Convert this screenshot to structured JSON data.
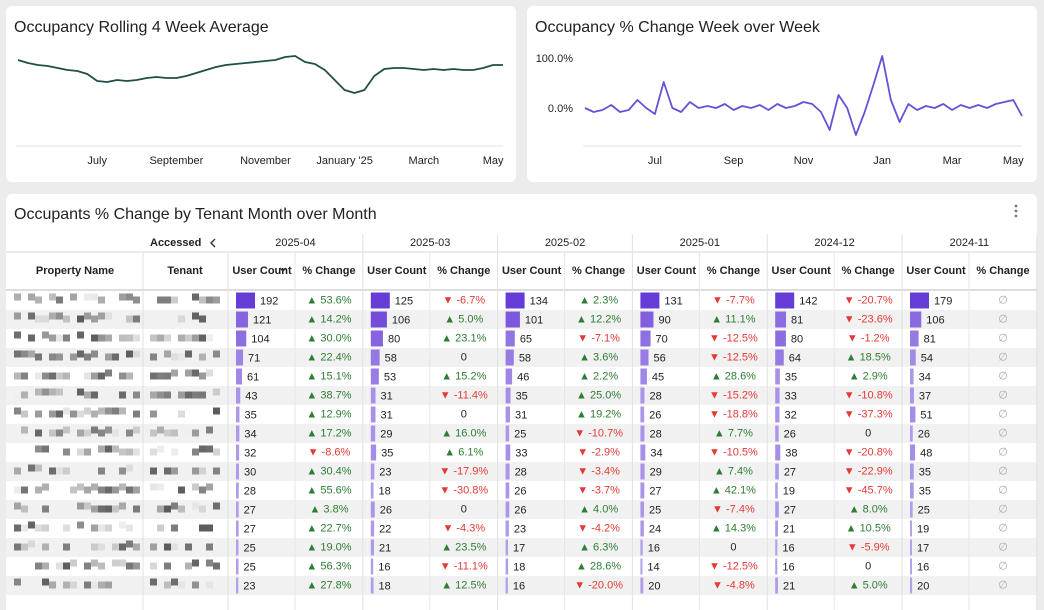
{
  "chart_data": [
    {
      "type": "line",
      "title": "Occupancy Rolling 4 Week Average",
      "color": "#1f4f45",
      "categories": [
        null,
        null,
        null,
        null,
        null,
        null,
        null,
        null,
        "July",
        null,
        null,
        null,
        null,
        null,
        null,
        null,
        "September",
        null,
        null,
        null,
        null,
        null,
        null,
        null,
        null,
        "November",
        null,
        null,
        null,
        null,
        null,
        null,
        null,
        "January '25",
        null,
        null,
        null,
        null,
        null,
        null,
        null,
        "March",
        null,
        null,
        null,
        null,
        null,
        null,
        "May",
        null
      ],
      "values": [
        90,
        87,
        85,
        84,
        82,
        80,
        79,
        76,
        69,
        68,
        70,
        69,
        70,
        72,
        73,
        72,
        72,
        74,
        77,
        80,
        83,
        85,
        86,
        87,
        88,
        89,
        90,
        93,
        94,
        88,
        86,
        80,
        70,
        60,
        57,
        60,
        74,
        81,
        82,
        82,
        81,
        80,
        81,
        80,
        81,
        80,
        80,
        82,
        85,
        85
      ]
    },
    {
      "type": "line",
      "title": "Occupancy % Change Week over Week",
      "color": "#6a4fd8",
      "categories": [
        null,
        null,
        null,
        null,
        null,
        null,
        null,
        null,
        "Jul",
        null,
        null,
        null,
        null,
        null,
        null,
        null,
        null,
        "Sep",
        null,
        null,
        null,
        null,
        null,
        null,
        null,
        "Nov",
        null,
        null,
        null,
        null,
        null,
        null,
        null,
        null,
        "Jan",
        null,
        null,
        null,
        null,
        null,
        null,
        null,
        "Mar",
        null,
        null,
        null,
        null,
        null,
        null,
        "May",
        null
      ],
      "values": [
        2,
        -6,
        -2,
        8,
        -6,
        -2,
        18,
        2,
        -10,
        54,
        2,
        -6,
        14,
        2,
        6,
        2,
        10,
        -2,
        6,
        2,
        8,
        -2,
        10,
        2,
        6,
        14,
        10,
        -6,
        -42,
        28,
        2,
        -52,
        -6,
        48,
        106,
        18,
        -26,
        10,
        -2,
        6,
        2,
        10,
        -2,
        8,
        2,
        8,
        2,
        10,
        14,
        18,
        -14
      ],
      "ylim": [
        -74,
        118
      ],
      "yticks": [
        {
          "value": 0,
          "label": "0.0%"
        },
        {
          "value": 100,
          "label": "100.0%"
        }
      ]
    }
  ],
  "table": {
    "title": "Occupants % Change by Tenant Month over Month",
    "group_label": "Accessed",
    "months": [
      "2025-04",
      "2025-03",
      "2025-02",
      "2025-01",
      "2024-12",
      "2024-11"
    ],
    "columns": [
      "Property Name",
      "Tenant",
      "User Count",
      "% Change"
    ],
    "rows": [
      [
        192,
        "▲ 53.6%",
        125,
        "▼ -6.7%",
        134,
        "▲ 2.3%",
        131,
        "▼ -7.7%",
        142,
        "▼ -20.7%",
        179,
        "∅"
      ],
      [
        121,
        "▲ 14.2%",
        106,
        "▲ 5.0%",
        101,
        "▲ 12.2%",
        90,
        "▲ 11.1%",
        81,
        "▼ -23.6%",
        106,
        "∅"
      ],
      [
        104,
        "▲ 30.0%",
        80,
        "▲ 23.1%",
        65,
        "▼ -7.1%",
        70,
        "▼ -12.5%",
        80,
        "▼ -1.2%",
        81,
        "∅"
      ],
      [
        71,
        "▲ 22.4%",
        58,
        "0",
        58,
        "▲ 3.6%",
        56,
        "▼ -12.5%",
        64,
        "▲ 18.5%",
        54,
        "∅"
      ],
      [
        61,
        "▲ 15.1%",
        53,
        "▲ 15.2%",
        46,
        "▲ 2.2%",
        45,
        "▲ 28.6%",
        35,
        "▲ 2.9%",
        34,
        "∅"
      ],
      [
        43,
        "▲ 38.7%",
        31,
        "▼ -11.4%",
        35,
        "▲ 25.0%",
        28,
        "▼ -15.2%",
        33,
        "▼ -10.8%",
        37,
        "∅"
      ],
      [
        35,
        "▲ 12.9%",
        31,
        "0",
        31,
        "▲ 19.2%",
        26,
        "▼ -18.8%",
        32,
        "▼ -37.3%",
        51,
        "∅"
      ],
      [
        34,
        "▲ 17.2%",
        29,
        "▲ 16.0%",
        25,
        "▼ -10.7%",
        28,
        "▲ 7.7%",
        26,
        "0",
        26,
        "∅"
      ],
      [
        32,
        "▼ -8.6%",
        35,
        "▲ 6.1%",
        33,
        "▼ -2.9%",
        34,
        "▼ -10.5%",
        38,
        "▼ -20.8%",
        48,
        "∅"
      ],
      [
        30,
        "▲ 30.4%",
        23,
        "▼ -17.9%",
        28,
        "▼ -3.4%",
        29,
        "▲ 7.4%",
        27,
        "▼ -22.9%",
        35,
        "∅"
      ],
      [
        28,
        "▲ 55.6%",
        18,
        "▼ -30.8%",
        26,
        "▼ -3.7%",
        27,
        "▲ 42.1%",
        19,
        "▼ -45.7%",
        35,
        "∅"
      ],
      [
        27,
        "▲ 3.8%",
        26,
        "0",
        26,
        "▲ 4.0%",
        25,
        "▼ -7.4%",
        27,
        "▲ 8.0%",
        25,
        "∅"
      ],
      [
        27,
        "▲ 22.7%",
        22,
        "▼ -4.3%",
        23,
        "▼ -4.2%",
        24,
        "▲ 14.3%",
        21,
        "▲ 10.5%",
        19,
        "∅"
      ],
      [
        25,
        "▲ 19.0%",
        21,
        "▲ 23.5%",
        17,
        "▲ 6.3%",
        16,
        "0",
        16,
        "▼ -5.9%",
        17,
        "∅"
      ],
      [
        25,
        "▲ 56.3%",
        16,
        "▼ -11.1%",
        18,
        "▲ 28.6%",
        14,
        "▼ -12.5%",
        16,
        "0",
        16,
        "∅"
      ],
      [
        23,
        "▲ 27.8%",
        18,
        "▲ 12.5%",
        16,
        "▼ -20.0%",
        20,
        "▼ -4.8%",
        21,
        "▲ 5.0%",
        20,
        "∅"
      ]
    ]
  }
}
